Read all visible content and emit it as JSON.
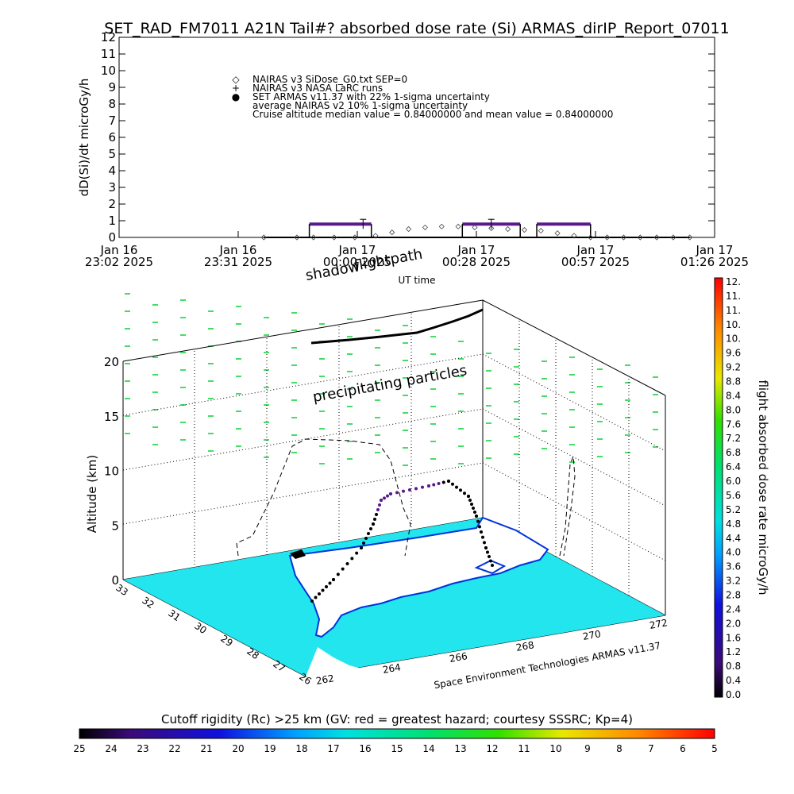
{
  "title": "SET_RAD_FM7011  A21N Tail#? absorbed dose rate (Si) ARMAS_dirIP_Report_07011",
  "chart_data": [
    {
      "type": "line",
      "ylabel": "dD(Si)/dt microGy/h",
      "xlabel": "UT time",
      "ylim": [
        0,
        12
      ],
      "yticks": [
        "0",
        "1",
        "2",
        "3",
        "4",
        "5",
        "6",
        "7",
        "8",
        "9",
        "10",
        "11",
        "12"
      ],
      "xticks": [
        {
          "l1": "Jan 16",
          "l2": "23:02 2025"
        },
        {
          "l1": "Jan 16",
          "l2": "23:31 2025"
        },
        {
          "l1": "Jan 17",
          "l2": "00:00 2025"
        },
        {
          "l1": "Jan 17",
          "l2": "00:28 2025"
        },
        {
          "l1": "Jan 17",
          "l2": "00:57 2025"
        },
        {
          "l1": "Jan 17",
          "l2": "01:26 2025"
        }
      ],
      "time_range_min": [
        0,
        144
      ],
      "legend": [
        {
          "symbol": "◇",
          "text": "NAIRAS v3 SiDose_G0.txt SEP=0"
        },
        {
          "symbol": "+",
          "text": "NAIRAS v3 NASA LaRC runs"
        },
        {
          "symbol": "●",
          "text": "SET ARMAS v11.37 with 22% 1-sigma uncertainty"
        },
        {
          "symbol": "",
          "text": "average NAIRAS v2 10% 1-sigma uncertainty"
        },
        {
          "symbol": "",
          "text": "Cruise altitude median value = 0.84000000 and mean value = 0.84000000"
        }
      ],
      "series": [
        {
          "name": "SET ARMAS v11.37",
          "color": "#5a1a8c",
          "segments": [
            [
              [
                46,
                0.8
              ],
              [
                61,
                0.8
              ]
            ],
            [
              [
                83,
                0.8
              ],
              [
                97,
                0.8
              ]
            ],
            [
              [
                101,
                0.8
              ],
              [
                114,
                0.8
              ]
            ]
          ]
        },
        {
          "name": "NAIRAS v3 SiDose_G0.txt SEP=0",
          "color": "#000000",
          "x": [
            35,
            43,
            47,
            52,
            57,
            62,
            66,
            70,
            74,
            78,
            82,
            86,
            90,
            94,
            98,
            102,
            106,
            110,
            114,
            118,
            122,
            126,
            130,
            134,
            138
          ],
          "y": [
            0,
            0,
            0,
            0,
            0,
            0.1,
            0.3,
            0.5,
            0.6,
            0.65,
            0.65,
            0.6,
            0.55,
            0.5,
            0.45,
            0.4,
            0.25,
            0.1,
            0,
            0,
            0,
            0,
            0,
            0,
            0
          ]
        }
      ]
    }
  ],
  "scene": {
    "annotations": [
      "flightpath",
      "shadow",
      "precipitating particles"
    ],
    "z_label": "Altitude (km)",
    "z_ticks": [
      "0",
      "5",
      "10",
      "15",
      "20"
    ],
    "lat_ticks": [
      "33",
      "32",
      "31",
      "30",
      "29",
      "28",
      "27",
      "26"
    ],
    "lon_ticks": [
      "262",
      "264",
      "266",
      "268",
      "270",
      "272"
    ],
    "credit": "Space Environment Technologies ARMAS v11.37",
    "colors": {
      "sea": "#22e5ee",
      "land": "#ffffff",
      "coast": "#0033dd",
      "particles": "#44dd66"
    }
  },
  "colorbar_right": {
    "label": "flight absorbed dose rate microGy/h",
    "ticks": [
      "12.",
      "11.",
      "11.",
      "10.",
      "10.",
      "9.6",
      "9.2",
      "8.8",
      "8.4",
      "8.0",
      "7.6",
      "7.2",
      "6.8",
      "6.4",
      "6.0",
      "5.6",
      "5.2",
      "4.8",
      "4.4",
      "4.0",
      "3.6",
      "3.2",
      "2.8",
      "2.4",
      "2.0",
      "1.6",
      "1.2",
      "0.8",
      "0.4",
      "0.0"
    ]
  },
  "colorbar_bottom": {
    "label": "Cutoff rigidity (Rc) >25 km (GV: red = greatest hazard; courtesy SSSRC; Kp=4)",
    "ticks": [
      "25",
      "24",
      "23",
      "22",
      "21",
      "20",
      "19",
      "18",
      "17",
      "16",
      "15",
      "14",
      "13",
      "12",
      "11",
      "10",
      "9",
      "8",
      "7",
      "6",
      "5"
    ]
  }
}
